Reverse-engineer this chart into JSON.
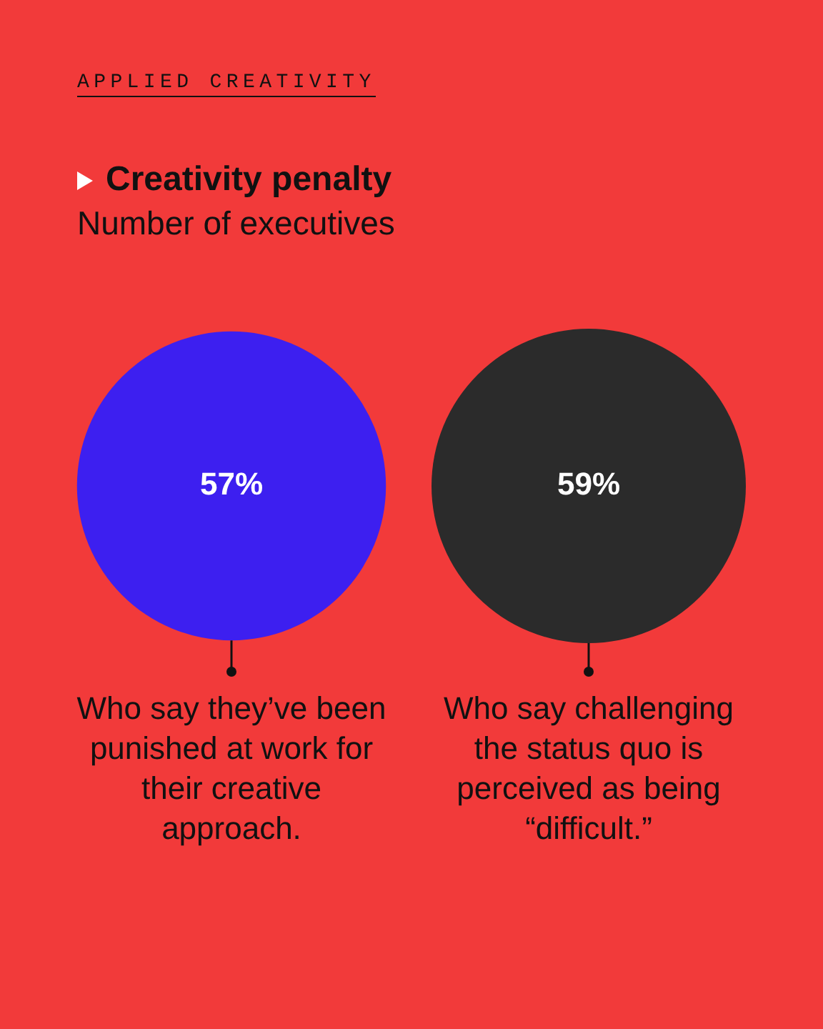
{
  "chart_data": {
    "type": "other",
    "title": "Creativity penalty",
    "subtitle": "Number of executives",
    "annotations": [
      "APPLIED CREATIVITY"
    ],
    "categories": [
      "Who say they’ve been punished at work for their creative approach.",
      "Who say challenging the status quo is perceived as being “difficult.”"
    ],
    "values": [
      57,
      59
    ],
    "value_labels": [
      "57%",
      "59%"
    ],
    "colors": [
      "#3d1ff0",
      "#2b2b2b"
    ]
  }
}
